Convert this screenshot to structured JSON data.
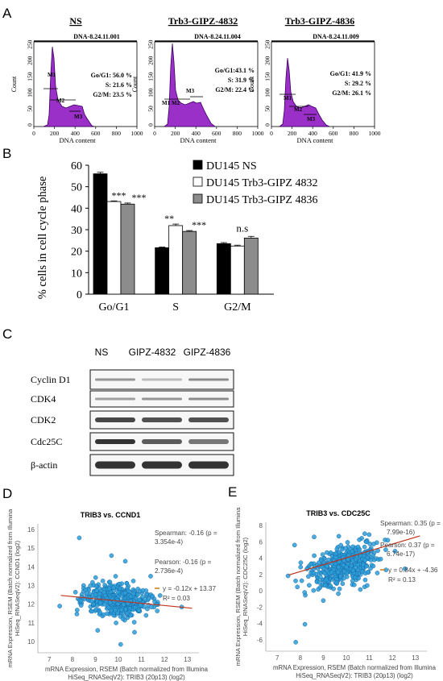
{
  "panel_labels": {
    "A": "A",
    "B": "B",
    "C": "C",
    "D": "D",
    "E": "E"
  },
  "panel_a": {
    "histograms": [
      {
        "title": "NS",
        "sample_id": "DNA-8.24.11.001",
        "stats": [
          "Go/G1: 56.0 %",
          "S: 21.6 %",
          "G2/M: 23.5 %"
        ],
        "markers": [
          "M1",
          "M2",
          "M3"
        ]
      },
      {
        "title": "Trb3-GIPZ-4832",
        "sample_id": "DNA-8.24.11.004",
        "stats": [
          "Go/G1:43.1 %",
          "S: 31.9 %",
          "G2/M: 22.4 %"
        ],
        "markers": [
          "M1",
          "M2",
          "M3"
        ]
      },
      {
        "title": "Trb3-GIPZ-4836",
        "sample_id": "DNA-8.24.11.009",
        "stats": [
          "Go/G1: 41.9 %",
          "S: 29.2 %",
          "G2/M: 26.1 %"
        ],
        "markers": [
          "M1",
          "M2",
          "M3"
        ]
      }
    ],
    "ylabel": "Count",
    "xlabel": "DNA content",
    "xticks": [
      "0",
      "200",
      "400",
      "600",
      "800",
      "1000"
    ],
    "yticks": [
      "0",
      "50",
      "100",
      "150",
      "200",
      "250"
    ]
  },
  "chart_data": [
    {
      "type": "bar",
      "panel": "B",
      "categories": [
        "Go/G1",
        "S",
        "G2/M"
      ],
      "series": [
        {
          "name": "DU145 NS",
          "values": [
            56.0,
            21.6,
            23.5
          ],
          "errors": [
            0.7,
            0.3,
            0.5
          ],
          "color": "#000000"
        },
        {
          "name": "DU145 Trb3-GIPZ 4832",
          "values": [
            43.1,
            31.9,
            22.4
          ],
          "errors": [
            0.3,
            0.7,
            0.4
          ],
          "color": "#ffffff"
        },
        {
          "name": "DU145 Trb3-GIPZ 4836",
          "values": [
            41.9,
            29.2,
            26.1
          ],
          "errors": [
            0.5,
            0.4,
            0.8
          ],
          "color": "#8c8c8c"
        }
      ],
      "significance": [
        [
          "",
          "***",
          "***"
        ],
        [
          "",
          "**",
          "***"
        ],
        [
          "",
          "n.s",
          ""
        ]
      ],
      "ylabel": "% cells in cell cycle phase",
      "ylim": [
        0,
        60
      ],
      "yticks": [
        "0",
        "10",
        "20",
        "30",
        "40",
        "50",
        "60"
      ],
      "legend": "top-right"
    },
    {
      "type": "scatter",
      "panel": "D",
      "title": "TRIB3 vs. CCND1",
      "xlabel": "mRNA Expression, RSEM (Batch normalized from Illumina HiSeq_RNASeqV2): TRIB3 (20p13) (log2)",
      "ylabel": "mRNA Expression, RSEM (Batch normalized from Illumina HiSeq_RNASeqV2): CCND1 (log2)",
      "xlim": [
        6.5,
        13.5
      ],
      "ylim": [
        9.4,
        16.3
      ],
      "xticks": [
        "7",
        "8",
        "9",
        "10",
        "11",
        "12",
        "13"
      ],
      "yticks": [
        "10",
        "11",
        "12",
        "13",
        "14",
        "15",
        "16"
      ],
      "center": [
        9.9,
        12.2
      ],
      "spread": [
        0.7,
        0.45
      ],
      "fit": {
        "slope": -0.12,
        "intercept": 13.37
      },
      "outliers": [
        [
          8.3,
          15.55
        ],
        [
          9.7,
          14.6
        ],
        [
          10.3,
          14.3
        ],
        [
          10.1,
          9.85
        ],
        [
          12.75,
          11.85
        ],
        [
          7.45,
          11.9
        ],
        [
          9.1,
          10.6
        ],
        [
          10.7,
          10.5
        ],
        [
          11.4,
          13.5
        ]
      ],
      "stats": [
        "Spearman: -0.16 (p =",
        "3.354e-4)",
        "Pearson: -0.16 (p =",
        "2.736e-4)",
        "y = -0.12x + 13.37",
        "R² = 0.03"
      ]
    },
    {
      "type": "scatter",
      "panel": "E",
      "title": "TRIB3 vs. CDC25C",
      "xlabel": "mRNA Expression, RSEM (Batch normalized from Illumina HiSeq_RNASeqV2): TRIB3 (20p13) (log2)",
      "ylabel": "mRNA Expression, RSEM (Batch normalized from Illumina HiSeq_RNASeqV2): CDC25C (log2)",
      "xlim": [
        6.5,
        13.5
      ],
      "ylim": [
        -7.4,
        8.4
      ],
      "xticks": [
        "7",
        "8",
        "9",
        "10",
        "11",
        "12",
        "13"
      ],
      "yticks": [
        "-6",
        "-4",
        "-2",
        "0",
        "2",
        "4",
        "6",
        "8"
      ],
      "center": [
        9.9,
        3.2
      ],
      "spread": [
        0.75,
        1.2
      ],
      "fit": {
        "slope": 0.84,
        "intercept": -4.36
      },
      "outliers": [
        [
          7.8,
          -6.3
        ],
        [
          8.2,
          -4.1
        ],
        [
          7.75,
          5.6
        ],
        [
          12.55,
          2.7
        ],
        [
          8.6,
          6.6
        ],
        [
          11.8,
          6.2
        ],
        [
          9.0,
          -1.2
        ],
        [
          10.8,
          7.0
        ]
      ],
      "stats": [
        "Spearman: 0.35 (p =",
        "7.99e-16)",
        "Pearson:  0.37   (p =",
        "6.74e-17)",
        "y = 0.84x + -4.36",
        "R² = 0.13"
      ]
    }
  ],
  "panel_c": {
    "lane_labels": [
      "NS",
      "GIPZ-4832",
      "GIPZ-4836"
    ],
    "proteins": [
      "Cyclin D1",
      "CDK4",
      "CDK2",
      "Cdc25C",
      "β-actin"
    ]
  }
}
